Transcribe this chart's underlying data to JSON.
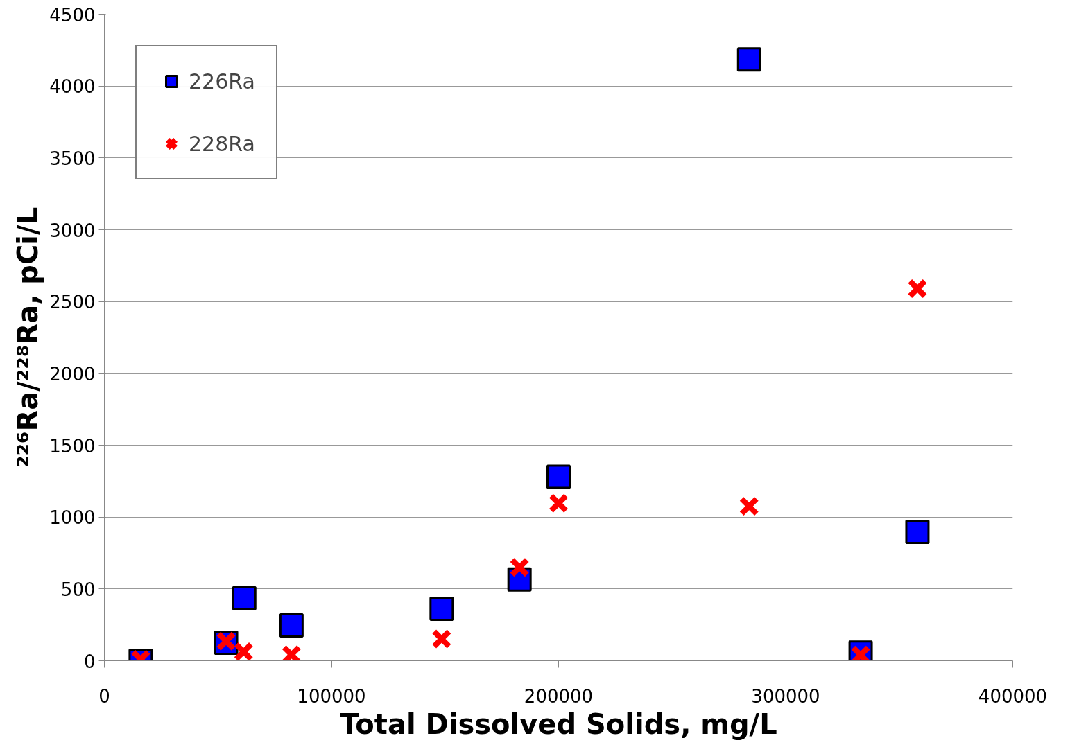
{
  "chart_data": {
    "type": "scatter",
    "xlabel": "Total Dissolved Solids, mg/L",
    "ylabel": "²²⁶Ra/²²⁸Ra, pCi/L",
    "xlim": [
      0,
      400000
    ],
    "xticks": [
      0,
      100000,
      200000,
      300000,
      400000
    ],
    "ylim": [
      0,
      4500
    ],
    "yticks": [
      0,
      500,
      1000,
      1500,
      2000,
      2500,
      3000,
      3500,
      4000,
      4500
    ],
    "grid": "y",
    "legend": "top left",
    "series": [
      {
        "name": "226Ra",
        "color": "#0000ff",
        "marker": "square",
        "x": [
          16000,
          53600,
          61600,
          82400,
          148500,
          182800,
          200000,
          283900,
          333000,
          358000
        ],
        "values": [
          0,
          125,
          435,
          246,
          362,
          566,
          1280,
          4185,
          57,
          897
        ]
      },
      {
        "name": "228Ra",
        "color": "#ff0000",
        "marker": "cross",
        "x": [
          16000,
          53600,
          61300,
          82400,
          148500,
          182800,
          200000,
          283900,
          333000,
          358000
        ],
        "values": [
          10,
          136,
          63,
          42,
          152,
          650,
          1096,
          1075,
          40,
          2590
        ]
      }
    ]
  }
}
